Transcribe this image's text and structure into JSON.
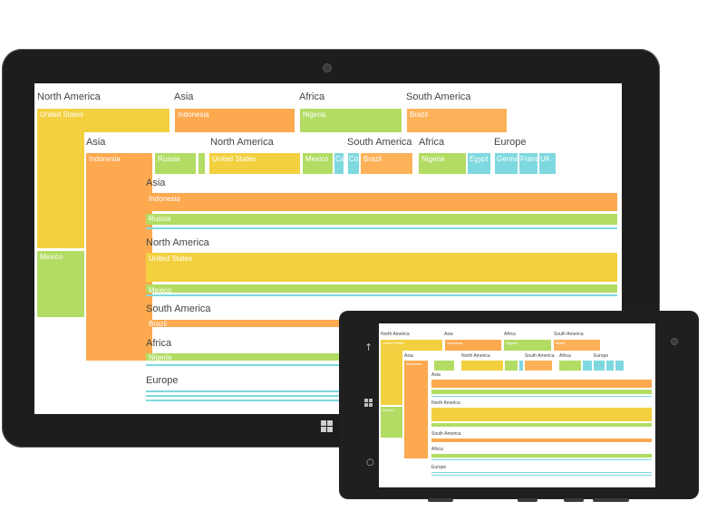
{
  "colors": {
    "north_america": "#f2d03f",
    "asia": "#fca94f",
    "africa": "#b2dc63",
    "south_america": "#fdb25a",
    "europe": "#7ed8df"
  },
  "tablet": {
    "top_headers": [
      "North America",
      "Asia",
      "Africa",
      "South America"
    ],
    "top_blocks": [
      "United States",
      "Indonesia",
      "Nigeria",
      "Brazil"
    ],
    "mexico": "Mexico",
    "second_headers": [
      "Asia",
      "North America",
      "South America",
      "Africa",
      "Europe"
    ],
    "second_blocks": {
      "indonesia": "Indonesia",
      "russia": "Russia",
      "united_states": "United States",
      "mexico": "Mexico",
      "ca": "Ca",
      "co": "Co",
      "brazil": "Brazil",
      "nigeria": "Nigeria",
      "egypt": "Egypt",
      "germany": "Germa",
      "france": "Franc",
      "uk": "UK"
    },
    "third": {
      "asia": "Asia",
      "indonesia": "Indonesia",
      "russia": "Russia",
      "north_america": "North America",
      "united_states": "United States",
      "mexico": "Mexico",
      "south_america": "South America",
      "brazil": "Brazil",
      "africa": "Africa",
      "nigeria": "Nigeria",
      "europe": "Europe"
    }
  },
  "phone": {
    "top_headers": [
      "North America",
      "Asia",
      "Africa",
      "South America"
    ],
    "top_blocks": [
      "United States",
      "Indonesia",
      "Nigeria",
      "Brazil"
    ],
    "second_headers": [
      "Asia",
      "North America",
      "South America",
      "Africa",
      "Europe"
    ],
    "third_headers": [
      "Asia",
      "North America",
      "South America",
      "Africa",
      "Europe"
    ],
    "mexico": "Mexico",
    "indonesia": "Indonesia"
  }
}
